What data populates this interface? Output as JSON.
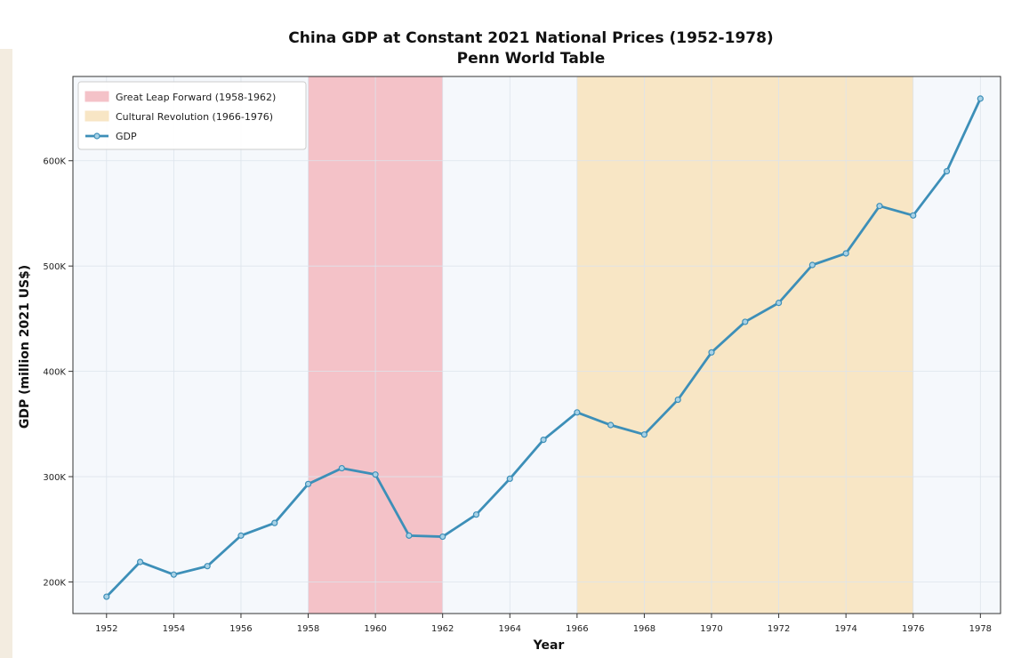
{
  "chart_data": {
    "type": "line",
    "title": "China GDP at Constant 2021 National Prices (1952-1978)",
    "subtitle": "Penn World Table",
    "xlabel": "Year",
    "ylabel": "GDP (million 2021 US$)",
    "xlim": [
      1951,
      1978.6
    ],
    "ylim": [
      170000,
      680000
    ],
    "x_ticks": [
      1952,
      1954,
      1956,
      1958,
      1960,
      1962,
      1964,
      1966,
      1968,
      1970,
      1972,
      1974,
      1976,
      1978
    ],
    "x_tick_labels": [
      "1952",
      "1954",
      "1956",
      "1958",
      "1960",
      "1962",
      "1964",
      "1966",
      "1968",
      "1970",
      "1972",
      "1974",
      "1976",
      "1978"
    ],
    "y_ticks": [
      200000,
      300000,
      400000,
      500000,
      600000
    ],
    "y_tick_labels": [
      "200K",
      "300K",
      "400K",
      "500K",
      "600K"
    ],
    "grid": true,
    "legend_position": "top-left",
    "shaded_regions": [
      {
        "label": "Great Leap Forward (1958-1962)",
        "start": 1958,
        "end": 1962,
        "color": "#f4c2c8"
      },
      {
        "label": "Cultural Revolution (1966-1976)",
        "start": 1966,
        "end": 1976,
        "color": "#f8e6c5"
      }
    ],
    "series": [
      {
        "name": "GDP",
        "color": "#3d8fb8",
        "x": [
          1952,
          1953,
          1954,
          1955,
          1956,
          1957,
          1958,
          1959,
          1960,
          1961,
          1962,
          1963,
          1964,
          1965,
          1966,
          1967,
          1968,
          1969,
          1970,
          1971,
          1972,
          1973,
          1974,
          1975,
          1976,
          1977,
          1978
        ],
        "values": [
          186000,
          219000,
          207000,
          215000,
          244000,
          256000,
          293000,
          308000,
          302000,
          244000,
          243000,
          264000,
          298000,
          335000,
          361000,
          349000,
          340000,
          373000,
          418000,
          447000,
          465000,
          501000,
          512000,
          557000,
          548000,
          590000,
          659000
        ]
      }
    ]
  }
}
